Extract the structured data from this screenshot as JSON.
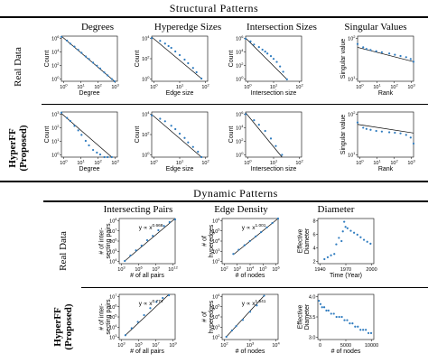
{
  "top_section": {
    "title": "Structural Patterns",
    "columns": [
      "Degrees",
      "Hyperedge Sizes",
      "Intersection Sizes",
      "Singular Values"
    ],
    "rows": [
      {
        "label_line1": "Real Data",
        "label_line2": ""
      },
      {
        "label_line1": "HyperFF",
        "label_line2": "(Proposed)"
      }
    ]
  },
  "bottom_section": {
    "title": "Dynamic Patterns",
    "columns": [
      "Intersecting Pairs",
      "Edge Density",
      "Diameter"
    ],
    "rows": [
      {
        "label_line1": "Real Data",
        "label_line2": ""
      },
      {
        "label_line1": "HyperFF",
        "label_line2": "(Proposed)"
      }
    ]
  },
  "colors": {
    "points": "#2e7bbf",
    "fit_line": "#000000",
    "axis": "#000000"
  },
  "chart_data": [
    {
      "id": "deg-real",
      "type": "scatter",
      "log_x": true,
      "log_y": true,
      "xlabel": "Degree",
      "ylabel": "Count",
      "xlim": [
        1,
        1000
      ],
      "ylim": [
        1,
        1000000
      ],
      "xticks": [
        "10^0",
        "10^1",
        "10^2",
        "10^3"
      ],
      "yticks": [
        "10^0",
        "10^2",
        "10^4",
        "10^6"
      ],
      "x": [
        1,
        2,
        3,
        5,
        8,
        12,
        20,
        30,
        50,
        80,
        120,
        200,
        300,
        500,
        700
      ],
      "y": [
        800000,
        250000,
        100000,
        40000,
        15000,
        6000,
        2000,
        900,
        300,
        120,
        50,
        15,
        6,
        2,
        1
      ],
      "fit": {
        "x": [
          1,
          700
        ],
        "y": [
          1000000,
          1
        ]
      }
    },
    {
      "id": "size-real",
      "type": "scatter",
      "log_x": true,
      "log_y": true,
      "xlabel": "Edge size",
      "ylabel": "Count",
      "xlim": [
        1,
        100
      ],
      "ylim": [
        1,
        100000
      ],
      "xticks": [
        "10^0",
        "10^1",
        "10^2"
      ],
      "yticks": [
        "10^0",
        "10^2",
        "10^4"
      ],
      "x": [
        1,
        2,
        3,
        4,
        5,
        7,
        10,
        15,
        20,
        30,
        40,
        60
      ],
      "y": [
        60000,
        30000,
        15000,
        8000,
        5000,
        2000,
        800,
        250,
        100,
        30,
        10,
        2
      ],
      "fit": {
        "x": [
          1,
          60
        ],
        "y": [
          80000,
          2
        ]
      }
    },
    {
      "id": "inter-real",
      "type": "scatter",
      "log_x": true,
      "log_y": true,
      "xlabel": "Intersection size",
      "ylabel": "Count",
      "xlim": [
        1,
        100
      ],
      "ylim": [
        1,
        10000000
      ],
      "xticks": [
        "10^0",
        "10^1",
        "10^2"
      ],
      "yticks": [
        "10^0",
        "10^2",
        "10^4",
        "10^6"
      ],
      "x": [
        1,
        1.5,
        2,
        3,
        4,
        5,
        6,
        8,
        10,
        13,
        17,
        22,
        30
      ],
      "y": [
        4000000,
        1500000,
        500000,
        200000,
        80000,
        40000,
        20000,
        8000,
        3000,
        1000,
        200,
        30,
        2
      ],
      "fit": {
        "x": [
          1,
          30
        ],
        "y": [
          5000000,
          2
        ]
      }
    },
    {
      "id": "sv-real",
      "type": "scatter",
      "log_x": true,
      "log_y": true,
      "xlabel": "Rank",
      "ylabel": "Singular value",
      "xlim": [
        1,
        1000
      ],
      "ylim": [
        1,
        1000
      ],
      "xticks": [
        "10^0",
        "10^1",
        "10^2",
        "10^3"
      ],
      "yticks": [
        "10^1",
        "10^2"
      ],
      "x": [
        1,
        2,
        3,
        5,
        10,
        20,
        50,
        100,
        200,
        400,
        700,
        1000
      ],
      "y": [
        300,
        180,
        140,
        120,
        100,
        85,
        70,
        58,
        48,
        40,
        30,
        20
      ],
      "fit": {
        "x": [
          1,
          1000
        ],
        "y": [
          180,
          20
        ]
      }
    },
    {
      "id": "deg-ff",
      "type": "scatter",
      "log_x": true,
      "log_y": true,
      "xlabel": "Degree",
      "ylabel": "Count",
      "xlim": [
        1,
        1000
      ],
      "ylim": [
        1,
        1000
      ],
      "xticks": [
        "10^0",
        "10^1",
        "10^2",
        "10^3"
      ],
      "yticks": [
        "10^0",
        "10^1",
        "10^2",
        "10^3"
      ],
      "x": [
        1,
        2,
        3,
        5,
        8,
        12,
        20,
        30,
        50,
        80,
        120,
        200,
        300,
        500
      ],
      "y": [
        900,
        400,
        250,
        120,
        60,
        30,
        12,
        6,
        3,
        2,
        1.5,
        1,
        1,
        1
      ],
      "fit": {
        "x": [
          1,
          500
        ],
        "y": [
          800,
          1
        ]
      }
    },
    {
      "id": "size-ff",
      "type": "scatter",
      "log_x": true,
      "log_y": true,
      "xlabel": "Edge size",
      "ylabel": "Count",
      "xlim": [
        1,
        100
      ],
      "ylim": [
        1,
        10000
      ],
      "xticks": [
        "10^0",
        "10^1",
        "10^2"
      ],
      "yticks": [
        "10^0",
        "10^2",
        "10^4"
      ],
      "x": [
        1,
        2,
        3,
        5,
        7,
        10,
        15,
        20,
        30,
        45,
        60
      ],
      "y": [
        5000,
        2500,
        1500,
        600,
        300,
        120,
        50,
        20,
        8,
        3,
        1
      ],
      "fit": {
        "x": [
          1,
          60
        ],
        "y": [
          6000,
          1
        ]
      }
    },
    {
      "id": "inter-ff",
      "type": "scatter",
      "log_x": true,
      "log_y": true,
      "xlabel": "Intersection size",
      "ylabel": "Count",
      "xlim": [
        1,
        100
      ],
      "ylim": [
        1,
        1000000
      ],
      "xticks": [
        "10^0",
        "10^1",
        "10^2"
      ],
      "yticks": [
        "10^0",
        "10^2",
        "10^4",
        "10^6"
      ],
      "x": [
        1,
        2,
        3,
        5,
        8,
        12,
        20
      ],
      "y": [
        500000,
        80000,
        20000,
        3000,
        300,
        30,
        2
      ],
      "fit": {
        "x": [
          1,
          20
        ],
        "y": [
          800000,
          1
        ]
      }
    },
    {
      "id": "sv-ff",
      "type": "scatter",
      "log_x": true,
      "log_y": true,
      "xlabel": "Rank",
      "ylabel": "Singular value",
      "xlim": [
        1,
        1000
      ],
      "ylim": [
        1,
        1000
      ],
      "xticks": [
        "10^0",
        "10^1",
        "10^2",
        "10^3"
      ],
      "yticks": [
        "10^1",
        "10^2"
      ],
      "x": [
        1,
        2,
        3,
        5,
        10,
        20,
        50,
        100,
        200,
        400,
        700,
        1000
      ],
      "y": [
        200,
        90,
        75,
        65,
        55,
        50,
        45,
        42,
        38,
        30,
        20,
        8
      ],
      "fit": {
        "x": [
          1,
          1000
        ],
        "y": [
          150,
          40
        ]
      }
    },
    {
      "id": "pairs-real",
      "type": "scatter",
      "log_x": true,
      "log_y": true,
      "xlabel": "# of all pairs",
      "ylabel": "# of inter-\nsecting pairs",
      "annotation_base": "y ∝ x",
      "annotation_exp": "0.668",
      "xlim": [
        100,
        1000000000000
      ],
      "ylim": [
        1000,
        100000000
      ],
      "xticks": [
        "10^3",
        "10^6",
        "10^9",
        "10^12"
      ],
      "yticks": [
        "10^4",
        "10^5",
        "10^6",
        "10^7",
        "10^8"
      ],
      "x": [
        1000,
        10000,
        100000,
        1000000,
        10000000,
        100000000,
        1000000000,
        10000000000,
        100000000000,
        1000000000000
      ],
      "y": [
        2000,
        8000,
        30000,
        100000,
        400000,
        1200000,
        5000000,
        15000000,
        40000000,
        80000000
      ],
      "fit": {
        "x": [
          1000,
          1000000000000
        ],
        "y": [
          2000,
          100000000
        ]
      }
    },
    {
      "id": "density-real",
      "type": "scatter",
      "log_x": true,
      "log_y": true,
      "xlabel": "# of nodes",
      "ylabel": "# of\nhyperedges",
      "annotation_base": "y ∝ x",
      "annotation_exp": "1.001",
      "xlim": [
        10,
        1000000
      ],
      "ylim": [
        10,
        1000000
      ],
      "xticks": [
        "10^2",
        "10^3",
        "10^4",
        "10^5",
        "10^6"
      ],
      "yticks": [
        "10^2",
        "10^3",
        "10^4",
        "10^5",
        "10^6"
      ],
      "x": [
        100,
        300,
        1000,
        3000,
        10000,
        30000,
        100000,
        300000,
        1000000
      ],
      "y": [
        120,
        350,
        1100,
        3200,
        10500,
        31000,
        105000,
        310000,
        1000000
      ],
      "fit": {
        "x": [
          100,
          1000000
        ],
        "y": [
          100,
          1000000
        ]
      }
    },
    {
      "id": "diam-real",
      "type": "scatter",
      "log_x": false,
      "log_y": false,
      "xlabel": "Time (Year)",
      "ylabel": "Effective\nDiameter",
      "xlim": [
        1930,
        2015
      ],
      "ylim": [
        1.5,
        8.5
      ],
      "xticks": [
        "1940",
        "1970",
        "2000"
      ],
      "yticks": [
        "2",
        "4",
        "6",
        "8"
      ],
      "x": [
        1940,
        1945,
        1950,
        1955,
        1958,
        1962,
        1966,
        1968,
        1970,
        1972,
        1975,
        1980,
        1985,
        1990,
        1995,
        2000,
        2005,
        2010
      ],
      "y": [
        2.2,
        2.5,
        2.8,
        3.0,
        4.5,
        5.5,
        5.0,
        6.5,
        8.0,
        7.2,
        7.0,
        6.6,
        6.3,
        6.0,
        5.6,
        5.2,
        4.9,
        4.6
      ]
    },
    {
      "id": "pairs-ff",
      "type": "scatter",
      "log_x": true,
      "log_y": true,
      "xlabel": "# of all pairs",
      "ylabel": "# of inter-\nsecting pairs",
      "annotation_base": "y ∝ x",
      "annotation_exp": "0.774",
      "xlim": [
        100,
        100000000000
      ],
      "ylim": [
        100,
        10000000
      ],
      "xticks": [
        "10^3",
        "10^5",
        "10^7",
        "10^9"
      ],
      "yticks": [
        "10^3",
        "10^4",
        "10^5",
        "10^6",
        "10^7"
      ],
      "x": [
        1000,
        10000,
        100000,
        1000000,
        10000000,
        100000000,
        1000000000,
        10000000000
      ],
      "y": [
        300,
        1800,
        9000,
        50000,
        300000,
        1500000,
        4000000,
        8000000
      ],
      "fit": {
        "x": [
          1000,
          10000000000
        ],
        "y": [
          300,
          10000000
        ]
      }
    },
    {
      "id": "density-ff",
      "type": "scatter",
      "log_x": true,
      "log_y": true,
      "xlabel": "# of nodes",
      "ylabel": "# of\nhyperedges",
      "annotation_base": "y ∝ x",
      "annotation_exp": "1.541",
      "xlim": [
        10,
        100000
      ],
      "ylim": [
        10,
        1000000
      ],
      "xticks": [
        "10^2",
        "10^3",
        "10^4"
      ],
      "yticks": [
        "10^2",
        "10^3",
        "10^4",
        "10^5",
        "10^6"
      ],
      "x": [
        20,
        50,
        100,
        300,
        1000,
        3000,
        10000
      ],
      "y": [
        20,
        100,
        300,
        1500,
        12000,
        60000,
        700000
      ],
      "fit": {
        "x": [
          20,
          10000
        ],
        "y": [
          20,
          700000
        ]
      }
    },
    {
      "id": "diam-ff",
      "type": "scatter",
      "log_x": false,
      "log_y": false,
      "xlabel": "# of nodes",
      "ylabel": "Effective\nDiameter",
      "xlim": [
        0,
        10500
      ],
      "ylim": [
        2.8,
        4.2
      ],
      "xticks": [
        "0",
        "5000",
        "10000"
      ],
      "yticks": [
        "3.0",
        "3.5",
        "4.0"
      ],
      "x": [
        200,
        500,
        800,
        1200,
        1600,
        2000,
        2500,
        3000,
        3500,
        4000,
        4500,
        5000,
        5500,
        6000,
        6500,
        7000,
        7500,
        8000,
        8500,
        9000,
        9500,
        10000
      ],
      "y": [
        4.0,
        3.9,
        3.8,
        3.8,
        3.7,
        3.7,
        3.6,
        3.6,
        3.5,
        3.5,
        3.5,
        3.4,
        3.4,
        3.3,
        3.3,
        3.2,
        3.2,
        3.1,
        3.1,
        3.1,
        3.0,
        3.0
      ]
    }
  ]
}
